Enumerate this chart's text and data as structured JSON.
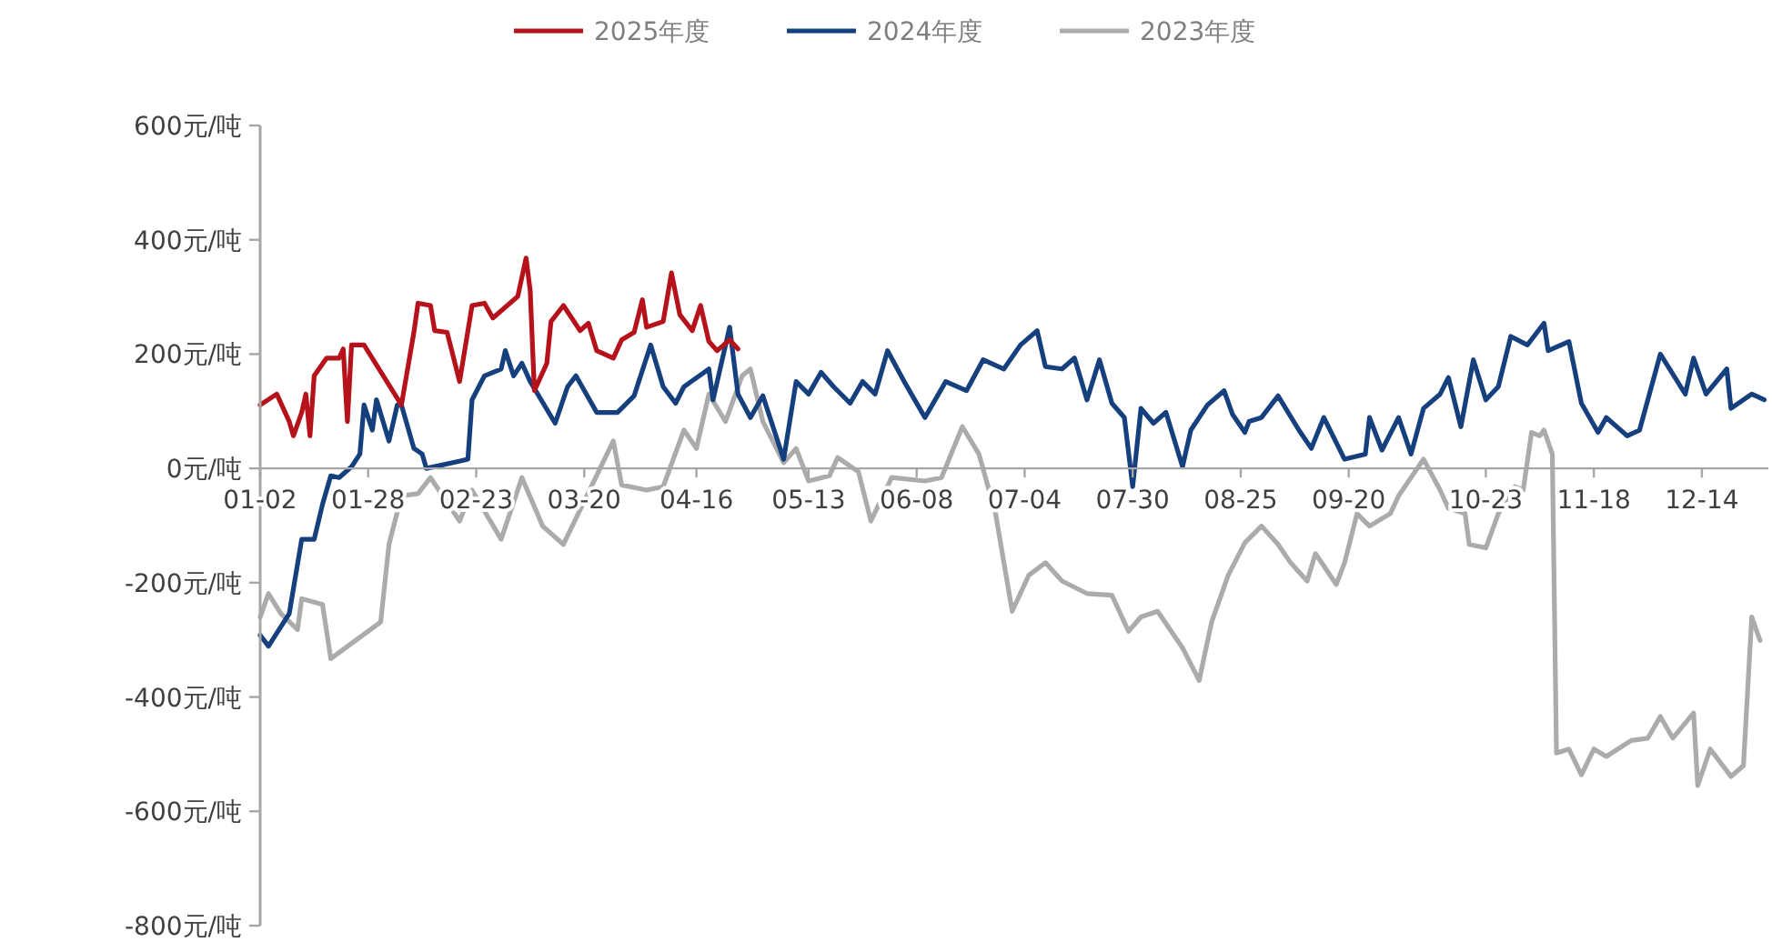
{
  "chart_data": {
    "type": "line",
    "legend": "top",
    "xlim": [
      "--01-02",
      "--12-30"
    ],
    "ylim": [
      -800,
      600
    ],
    "yticks": [
      {
        "value": 600,
        "label": "600元/吨"
      },
      {
        "value": 400,
        "label": "400元/吨"
      },
      {
        "value": 200,
        "label": "200元/吨"
      },
      {
        "value": 0,
        "label": "0元/吨"
      },
      {
        "value": -200,
        "label": "-200元/吨"
      },
      {
        "value": -400,
        "label": "-400元/吨"
      },
      {
        "value": -600,
        "label": "-600元/吨"
      },
      {
        "value": -800,
        "label": "-800元/吨"
      }
    ],
    "xticks": [
      {
        "value": "--01-02",
        "label": "01-02"
      },
      {
        "value": "--01-28",
        "label": "01-28"
      },
      {
        "value": "--02-23",
        "label": "02-23"
      },
      {
        "value": "--03-20",
        "label": "03-20"
      },
      {
        "value": "--04-16",
        "label": "04-16"
      },
      {
        "value": "--05-13",
        "label": "05-13"
      },
      {
        "value": "--06-08",
        "label": "06-08"
      },
      {
        "value": "--07-04",
        "label": "07-04"
      },
      {
        "value": "--07-30",
        "label": "07-30"
      },
      {
        "value": "--08-25",
        "label": "08-25"
      },
      {
        "value": "--09-20",
        "label": "09-20"
      },
      {
        "value": "--10-23",
        "label": "10-23"
      },
      {
        "value": "--11-18",
        "label": "11-18"
      },
      {
        "value": "--12-14",
        "label": "12-14"
      }
    ],
    "series": [
      {
        "name": "2025年度",
        "color": "#b5121b",
        "x": [
          "--01-02",
          "--01-06",
          "--01-09",
          "--01-10",
          "--01-12",
          "--01-13",
          "--01-14",
          "--01-15",
          "--01-18",
          "--01-21",
          "--01-22",
          "--01-23",
          "--01-24",
          "--01-27",
          "--02-05",
          "--02-08",
          "--02-09",
          "--02-12",
          "--02-13",
          "--02-16",
          "--02-19",
          "--02-22",
          "--02-25",
          "--02-27",
          "--03-04",
          "--03-06",
          "--03-07",
          "--03-08",
          "--03-11",
          "--03-12",
          "--03-15",
          "--03-19",
          "--03-21",
          "--03-23",
          "--03-27",
          "--03-29",
          "--04-01",
          "--04-03",
          "--04-04",
          "--04-08",
          "--04-10",
          "--04-12",
          "--04-15",
          "--04-17",
          "--04-19",
          "--04-21",
          "--04-24",
          "--04-26"
        ],
        "values": [
          111,
          130,
          82,
          57,
          98,
          130,
          57,
          162,
          193,
          193,
          209,
          82,
          216,
          216,
          111,
          238,
          289,
          285,
          241,
          238,
          152,
          285,
          289,
          263,
          301,
          368,
          311,
          136,
          184,
          257,
          285,
          241,
          254,
          206,
          193,
          225,
          238,
          295,
          247,
          257,
          342,
          269,
          241,
          285,
          222,
          206,
          225,
          209
        ]
      },
      {
        "name": "2024年度",
        "color": "#163f7e",
        "x": [
          "--01-02",
          "--01-04",
          "--01-09",
          "--01-12",
          "--01-15",
          "--01-17",
          "--01-19",
          "--01-21",
          "--01-24",
          "--01-26",
          "--01-27",
          "--01-29",
          "--01-30",
          "--02-02",
          "--02-04",
          "--02-05",
          "--02-08",
          "--02-10",
          "--02-11",
          "--02-21",
          "--02-22",
          "--02-25",
          "--02-29",
          "--03-01",
          "--03-03",
          "--03-05",
          "--03-07",
          "--03-13",
          "--03-16",
          "--03-18",
          "--03-23",
          "--03-28",
          "--04-01",
          "--04-05",
          "--04-08",
          "--04-11",
          "--04-13",
          "--04-19",
          "--04-20",
          "--04-24",
          "--04-26",
          "--04-29",
          "--05-02",
          "--05-07",
          "--05-10",
          "--05-13",
          "--05-16",
          "--05-19",
          "--05-23",
          "--05-26",
          "--05-29",
          "--06-01",
          "--06-05",
          "--06-10",
          "--06-15",
          "--06-20",
          "--06-24",
          "--06-29",
          "--07-03",
          "--07-07",
          "--07-09",
          "--07-13",
          "--07-16",
          "--07-19",
          "--07-22",
          "--07-25",
          "--07-28",
          "--07-30",
          "--08-01",
          "--08-04",
          "--08-07",
          "--08-11",
          "--08-13",
          "--08-17",
          "--08-21",
          "--08-23",
          "--08-26",
          "--08-27",
          "--08-30",
          "--09-03",
          "--09-08",
          "--09-11",
          "--09-14",
          "--09-19",
          "--09-24",
          "--09-25",
          "--09-28",
          "--10-02",
          "--10-05",
          "--10-08",
          "--10-12",
          "--10-14",
          "--10-17",
          "--10-20",
          "--10-23",
          "--10-26",
          "--10-29",
          "--11-02",
          "--11-06",
          "--11-07",
          "--11-12",
          "--11-15",
          "--11-19",
          "--11-21",
          "--11-26",
          "--11-29",
          "--12-04",
          "--12-10",
          "--12-12",
          "--12-15",
          "--12-20",
          "--12-21",
          "--12-26",
          "--12-29"
        ],
        "values": [
          -292,
          -311,
          -254,
          -124,
          -124,
          -63,
          -13,
          -16,
          3,
          25,
          111,
          67,
          120,
          48,
          111,
          111,
          35,
          25,
          0,
          16,
          120,
          162,
          174,
          206,
          162,
          184,
          152,
          79,
          143,
          162,
          98,
          98,
          127,
          216,
          143,
          114,
          143,
          174,
          120,
          247,
          130,
          89,
          127,
          16,
          152,
          130,
          168,
          143,
          114,
          152,
          130,
          206,
          152,
          89,
          152,
          136,
          190,
          174,
          216,
          241,
          178,
          174,
          193,
          120,
          190,
          114,
          89,
          -32,
          105,
          79,
          98,
          3,
          67,
          111,
          136,
          95,
          63,
          82,
          89,
          127,
          67,
          35,
          89,
          16,
          25,
          89,
          32,
          89,
          25,
          105,
          130,
          159,
          73,
          190,
          120,
          143,
          231,
          216,
          254,
          206,
          222,
          114,
          63,
          89,
          57,
          67,
          200,
          130,
          193,
          130,
          174,
          105,
          130,
          120
        ]
      },
      {
        "name": "2023年度",
        "color": "#ababab",
        "x": [
          "--01-02",
          "--01-04",
          "--01-07",
          "--01-11",
          "--01-12",
          "--01-17",
          "--01-19",
          "--01-31",
          "--02-02",
          "--02-05",
          "--02-09",
          "--02-12",
          "--02-19",
          "--02-22",
          "--02-29",
          "--03-05",
          "--03-10",
          "--03-15",
          "--03-27",
          "--03-29",
          "--04-04",
          "--04-08",
          "--04-13",
          "--04-16",
          "--04-19",
          "--04-23",
          "--04-27",
          "--04-29",
          "--05-02",
          "--05-07",
          "--05-10",
          "--05-13",
          "--05-18",
          "--05-20",
          "--05-25",
          "--05-28",
          "--06-02",
          "--06-10",
          "--06-14",
          "--06-19",
          "--06-23",
          "--06-27",
          "--07-01",
          "--07-05",
          "--07-09",
          "--07-13",
          "--07-19",
          "--07-25",
          "--07-29",
          "--08-01",
          "--08-05",
          "--08-11",
          "--08-15",
          "--08-18",
          "--08-22",
          "--08-26",
          "--08-30",
          "--09-03",
          "--09-06",
          "--09-10",
          "--09-12",
          "--09-17",
          "--09-19",
          "--09-22",
          "--09-25",
          "--09-30",
          "--10-02",
          "--10-08",
          "--10-12",
          "--10-14",
          "--10-18",
          "--10-19",
          "--10-23",
          "--10-26",
          "--10-30",
          "--11-01",
          "--11-03",
          "--11-05",
          "--11-06",
          "--11-08",
          "--11-09",
          "--11-12",
          "--11-15",
          "--11-18",
          "--11-21",
          "--11-27",
          "--12-01",
          "--12-04",
          "--12-07",
          "--12-12",
          "--12-13",
          "--12-16",
          "--12-21",
          "--12-24",
          "--12-26",
          "--12-28"
        ],
        "values": [
          -260,
          -219,
          -254,
          -282,
          -228,
          -238,
          -333,
          -269,
          -133,
          -48,
          -44,
          -16,
          -92,
          -38,
          -124,
          -16,
          -101,
          -133,
          48,
          -29,
          -38,
          -32,
          67,
          35,
          130,
          82,
          162,
          174,
          82,
          10,
          35,
          -22,
          -13,
          19,
          -6,
          -92,
          -16,
          -22,
          -16,
          73,
          25,
          -79,
          -250,
          -187,
          -165,
          -197,
          -219,
          -222,
          -285,
          -260,
          -250,
          -314,
          -371,
          -269,
          -187,
          -130,
          -101,
          -133,
          -165,
          -197,
          -149,
          -203,
          -165,
          -79,
          -101,
          -79,
          -48,
          16,
          -38,
          -70,
          -79,
          -133,
          -139,
          -79,
          -32,
          -38,
          63,
          57,
          67,
          25,
          -498,
          -491,
          -536,
          -491,
          -504,
          -476,
          -472,
          -434,
          -472,
          -428,
          -555,
          -491,
          -539,
          -520,
          -260,
          -301
        ]
      }
    ]
  }
}
